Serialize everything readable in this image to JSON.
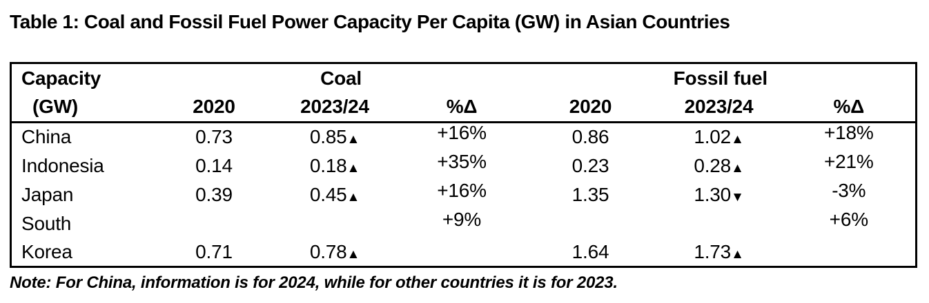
{
  "page": {
    "title": "Table 1: Coal and Fossil Fuel Power Capacity Per Capita (GW) in Asian Countries",
    "note": "Note: For China, information is for 2024, while for other countries it is for 2023."
  },
  "table": {
    "corner": {
      "line1": "Capacity",
      "line2": "(GW)"
    },
    "group_headers": [
      {
        "label": "Coal",
        "span": 3
      },
      {
        "label": "Fossil fuel",
        "span": 3
      }
    ],
    "column_headers": [
      "2020",
      "2023/24",
      "%Δ",
      "2020",
      "2023/24",
      "%Δ"
    ],
    "up_marker": "▲",
    "down_marker": "▼",
    "rows": [
      {
        "country": "China",
        "cells": [
          "0.73",
          "0.85▲",
          "+16%",
          "0.86",
          "1.02▲",
          "+18%"
        ]
      },
      {
        "country": "Indonesia",
        "cells": [
          "0.14",
          "0.18▲",
          "+35%",
          "0.23",
          "0.28▲",
          "+21%"
        ]
      },
      {
        "country": "Japan",
        "cells": [
          "0.39",
          "0.45▲",
          "+16%",
          "1.35",
          "1.30▼",
          "-3%"
        ]
      },
      {
        "country": "South",
        "cells": [
          "",
          "",
          "+9%",
          "",
          "",
          "+6%"
        ]
      },
      {
        "country": "Korea",
        "cells": [
          "0.71",
          "0.78▲",
          "",
          "1.64",
          "1.73▲",
          ""
        ]
      }
    ],
    "colors": {
      "text": "#000000",
      "border": "#000000",
      "background": "#ffffff"
    }
  }
}
